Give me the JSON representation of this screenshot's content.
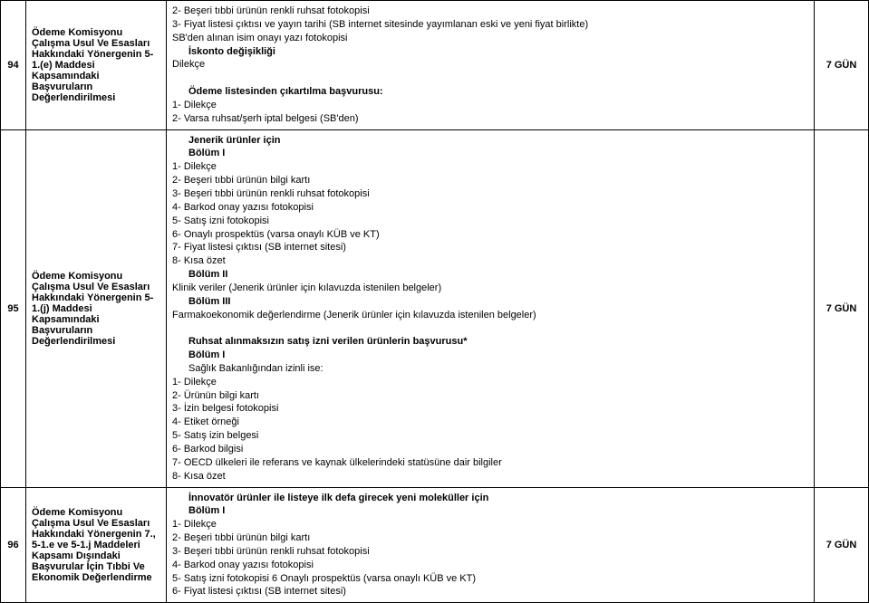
{
  "rows": [
    {
      "num": "94",
      "title": "Ödeme Komisyonu Çalışma Usul Ve Esasları Hakkındaki Yönergenin 5-1.(e) Maddesi Kapsamındaki Başvuruların Değerlendirilmesi",
      "duration": "7 GÜN",
      "content": [
        {
          "t": "2- Beşeri tıbbi ürünün renkli ruhsat fotokopisi"
        },
        {
          "t": "3- Fiyat listesi çıktısı ve yayın tarihi (SB internet sitesinde yayımlanan eski ve yeni fiyat birlikte)"
        },
        {
          "t": "SB'den alınan isim onayı yazı fotokopisi"
        },
        {
          "t": "İskonto değişikliği",
          "i": true,
          "b": true
        },
        {
          "t": "Dilekçe"
        },
        {
          "t": ""
        },
        {
          "t": "Ödeme listesinden çıkartılma başvurusu:",
          "i": true,
          "b": true
        },
        {
          "t": "1- Dilekçe"
        },
        {
          "t": "2- Varsa ruhsat/şerh iptal belgesi (SB'den)"
        }
      ]
    },
    {
      "num": "95",
      "title": "Ödeme Komisyonu Çalışma Usul Ve Esasları Hakkındaki Yönergenin 5-1.(j) Maddesi Kapsamındaki Başvuruların Değerlendirilmesi",
      "duration": "7 GÜN",
      "content": [
        {
          "t": "Jenerik ürünler için",
          "i": true,
          "b": true
        },
        {
          "t": "Bölüm I",
          "i": true,
          "b": true
        },
        {
          "t": "1- Dilekçe"
        },
        {
          "t": "2- Beşeri tıbbi ürünün bilgi kartı"
        },
        {
          "t": "3- Beşeri tıbbi ürünün renkli ruhsat fotokopisi"
        },
        {
          "t": "4- Barkod onay yazısı fotokopisi"
        },
        {
          "t": "5- Satış izni fotokopisi"
        },
        {
          "t": "6- Onaylı prospektüs (varsa onaylı KÜB ve KT)"
        },
        {
          "t": "7- Fiyat listesi çıktısı (SB internet sitesi)"
        },
        {
          "t": "8- Kısa özet"
        },
        {
          "t": "Bölüm II",
          "i": true,
          "b": true
        },
        {
          "t": "Klinik veriler (Jenerik ürünler için kılavuzda istenilen belgeler)"
        },
        {
          "t": "Bölüm III",
          "i": true,
          "b": true
        },
        {
          "t": "Farmakoekonomik değerlendirme (Jenerik ürünler için kılavuzda istenilen belgeler)"
        },
        {
          "t": ""
        },
        {
          "t": "Ruhsat alınmaksızın satış izni verilen ürünlerin başvurusu*",
          "i": true,
          "b": true
        },
        {
          "t": "Bölüm I",
          "i": true,
          "b": true
        },
        {
          "t": "Sağlık Bakanlığından izinli ise:",
          "i": true
        },
        {
          "t": "1- Dilekçe"
        },
        {
          "t": "2- Ürünün bilgi kartı"
        },
        {
          "t": "3- İzin belgesi fotokopisi"
        },
        {
          "t": "4- Etiket örneği"
        },
        {
          "t": "5- Satış izin belgesi"
        },
        {
          "t": "6- Barkod bilgisi"
        },
        {
          "t": "7- OECD ülkeleri ile referans ve kaynak ülkelerindeki statüsüne dair bilgiler"
        },
        {
          "t": "8- Kısa özet"
        }
      ]
    },
    {
      "num": "96",
      "title": "Ödeme Komisyonu Çalışma Usul Ve Esasları Hakkındaki Yönergenin 7., 5-1.e ve 5-1.j Maddeleri Kapsamı Dışındaki Başvurular İçin Tıbbi Ve Ekonomik Değerlendirme",
      "duration": "7 GÜN",
      "content": [
        {
          "t": "İnnovatör ürünler ile listeye ilk defa girecek yeni moleküller için",
          "i": true,
          "b": true
        },
        {
          "t": "Bölüm I",
          "i": true,
          "b": true
        },
        {
          "t": "1- Dilekçe"
        },
        {
          "t": "2- Beşeri tıbbi ürünün bilgi kartı"
        },
        {
          "t": "3- Beşeri tıbbi ürünün renkli ruhsat fotokopisi"
        },
        {
          "t": "4- Barkod onay yazısı fotokopisi"
        },
        {
          "t": "5- Satış izni fotokopisi 6 Onaylı prospektüs (varsa onaylı KÜB ve KT)"
        },
        {
          "t": "6- Fiyat listesi çıktısı (SB internet sitesi)"
        }
      ]
    }
  ]
}
